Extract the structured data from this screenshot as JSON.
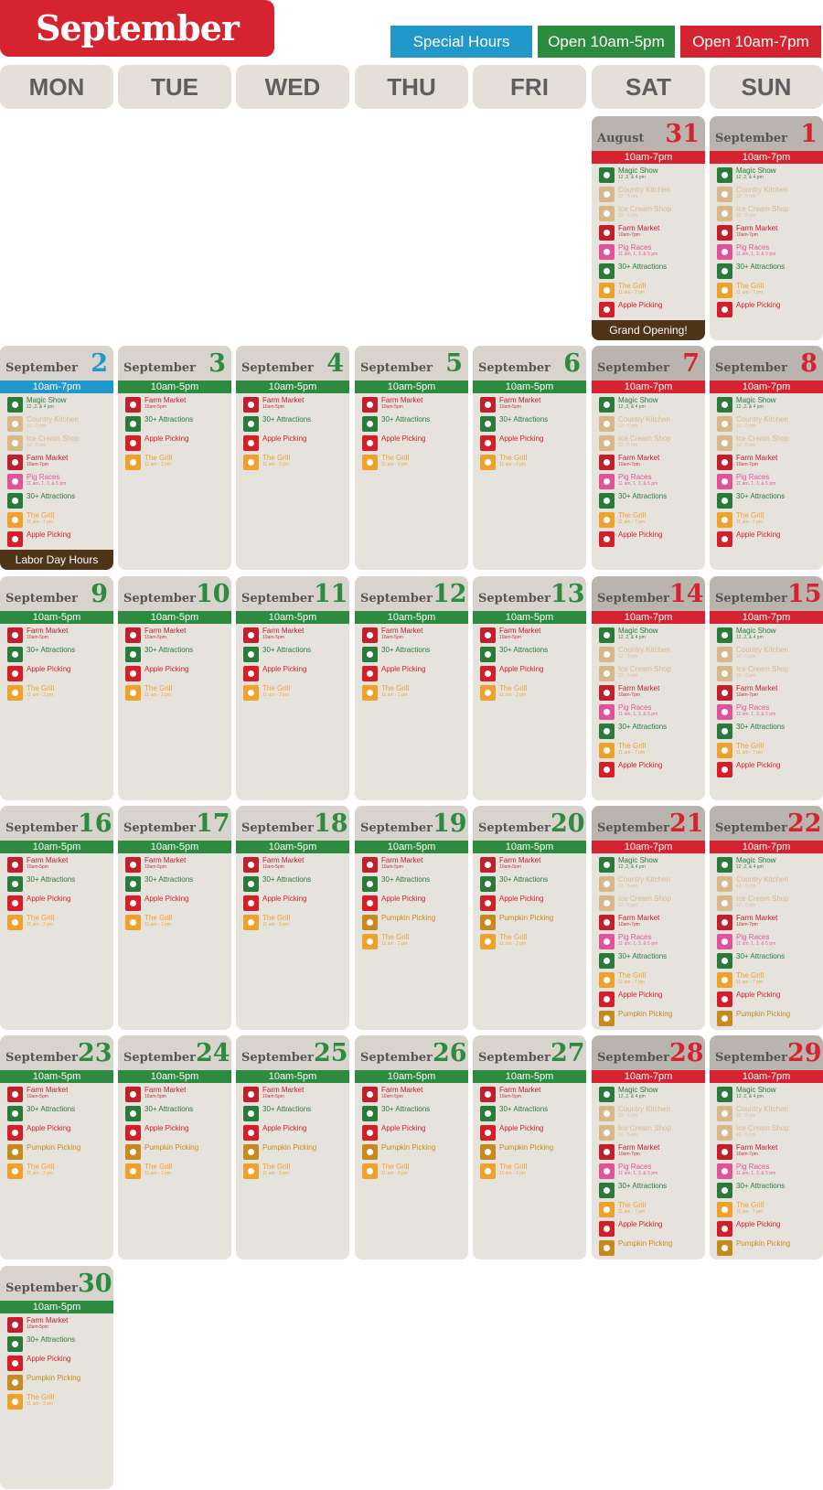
{
  "title": "September",
  "colors": {
    "special": "#2198c9",
    "open5": "#2c8b3e",
    "open7": "#d5232f",
    "footer": "#4f3418"
  },
  "legend": [
    {
      "label": "Special Hours",
      "type": "special"
    },
    {
      "label": "Open 10am-5pm",
      "type": "open5"
    },
    {
      "label": "Open 10am-7pm",
      "type": "open7"
    }
  ],
  "weekdays": [
    "MON",
    "TUE",
    "WED",
    "THU",
    "FRI",
    "SAT",
    "SUN"
  ],
  "events": {
    "magic": {
      "name": "Magic Show",
      "sub": "12 ,2, & 4 pm",
      "color": "#2a7a3a",
      "icon": "magic-show-icon"
    },
    "kitchen": {
      "name": "Country Kitchen",
      "sub": "12 - 5 pm",
      "color": "#d8b88b",
      "icon": "country-kitchen-icon"
    },
    "icecream": {
      "name": "Ice Cream Shop",
      "sub": "12 - 5 pm",
      "color": "#d8b88b",
      "icon": "ice-cream-icon"
    },
    "farm7": {
      "name": "Farm Market",
      "sub": "10am-7pm",
      "color": "#c11f2c",
      "icon": "farm-market-icon"
    },
    "farm5": {
      "name": "Farm Market",
      "sub": "10am-5pm",
      "color": "#c11f2c",
      "icon": "farm-market-icon"
    },
    "pig": {
      "name": "Pig Races",
      "sub": "11 am, 1, 3, & 5 pm",
      "color": "#e0539a",
      "icon": "pig-races-icon"
    },
    "attr": {
      "name": "30+ Attractions",
      "sub": "",
      "color": "#2a7a3a",
      "icon": "attractions-icon"
    },
    "grill7": {
      "name": "The Grill",
      "sub": "11 am - 7 pm",
      "color": "#f0a12b",
      "icon": "grill-icon"
    },
    "grill2": {
      "name": "The Grill",
      "sub": "11 am - 2 pm",
      "color": "#f0a12b",
      "icon": "grill-icon"
    },
    "apple": {
      "name": "Apple Picking",
      "sub": "",
      "color": "#d51e27",
      "icon": "apple-icon"
    },
    "pumpkin": {
      "name": "Pumpkin Picking",
      "sub": "",
      "color": "#c68a1e",
      "icon": "pumpkin-icon"
    }
  },
  "days": [
    {
      "month": "August",
      "num": "31",
      "hours": "10am-7pm",
      "type": "open7",
      "events": [
        "magic",
        "kitchen",
        "icecream",
        "farm7",
        "pig",
        "attr",
        "grill7",
        "apple"
      ],
      "footer": "Grand Opening!"
    },
    {
      "month": "September",
      "num": "1",
      "hours": "10am-7pm",
      "type": "open7",
      "events": [
        "magic",
        "kitchen",
        "icecream",
        "farm7",
        "pig",
        "attr",
        "grill7",
        "apple"
      ]
    },
    {
      "month": "September",
      "num": "2",
      "hours": "10am-7pm",
      "type": "special",
      "events": [
        "magic",
        "kitchen",
        "icecream",
        "farm7",
        "pig",
        "attr",
        "grill7",
        "apple"
      ],
      "footer": "Labor Day Hours"
    },
    {
      "month": "September",
      "num": "3",
      "hours": "10am-5pm",
      "type": "open5",
      "events": [
        "farm5",
        "attr",
        "apple",
        "grill2"
      ]
    },
    {
      "month": "September",
      "num": "4",
      "hours": "10am-5pm",
      "type": "open5",
      "events": [
        "farm5",
        "attr",
        "apple",
        "grill2"
      ]
    },
    {
      "month": "September",
      "num": "5",
      "hours": "10am-5pm",
      "type": "open5",
      "events": [
        "farm5",
        "attr",
        "apple",
        "grill2"
      ]
    },
    {
      "month": "September",
      "num": "6",
      "hours": "10am-5pm",
      "type": "open5",
      "events": [
        "farm5",
        "attr",
        "apple",
        "grill2"
      ]
    },
    {
      "month": "September",
      "num": "7",
      "hours": "10am-7pm",
      "type": "open7",
      "events": [
        "magic",
        "kitchen",
        "icecream",
        "farm7",
        "pig",
        "attr",
        "grill7",
        "apple"
      ]
    },
    {
      "month": "September",
      "num": "8",
      "hours": "10am-7pm",
      "type": "open7",
      "events": [
        "magic",
        "kitchen",
        "icecream",
        "farm7",
        "pig",
        "attr",
        "grill7",
        "apple"
      ]
    },
    {
      "month": "September",
      "num": "9",
      "hours": "10am-5pm",
      "type": "open5",
      "events": [
        "farm5",
        "attr",
        "apple",
        "grill2"
      ]
    },
    {
      "month": "September",
      "num": "10",
      "hours": "10am-5pm",
      "type": "open5",
      "events": [
        "farm5",
        "attr",
        "apple",
        "grill2"
      ]
    },
    {
      "month": "September",
      "num": "11",
      "hours": "10am-5pm",
      "type": "open5",
      "events": [
        "farm5",
        "attr",
        "apple",
        "grill2"
      ]
    },
    {
      "month": "September",
      "num": "12",
      "hours": "10am-5pm",
      "type": "open5",
      "events": [
        "farm5",
        "attr",
        "apple",
        "grill2"
      ]
    },
    {
      "month": "September",
      "num": "13",
      "hours": "10am-5pm",
      "type": "open5",
      "events": [
        "farm5",
        "attr",
        "apple",
        "grill2"
      ]
    },
    {
      "month": "September",
      "num": "14",
      "hours": "10am-7pm",
      "type": "open7",
      "events": [
        "magic",
        "kitchen",
        "icecream",
        "farm7",
        "pig",
        "attr",
        "grill7",
        "apple"
      ]
    },
    {
      "month": "September",
      "num": "15",
      "hours": "10am-7pm",
      "type": "open7",
      "events": [
        "magic",
        "kitchen",
        "icecream",
        "farm7",
        "pig",
        "attr",
        "grill7",
        "apple"
      ]
    },
    {
      "month": "September",
      "num": "16",
      "hours": "10am-5pm",
      "type": "open5",
      "events": [
        "farm5",
        "attr",
        "apple",
        "grill2"
      ]
    },
    {
      "month": "September",
      "num": "17",
      "hours": "10am-5pm",
      "type": "open5",
      "events": [
        "farm5",
        "attr",
        "apple",
        "grill2"
      ]
    },
    {
      "month": "September",
      "num": "18",
      "hours": "10am-5pm",
      "type": "open5",
      "events": [
        "farm5",
        "attr",
        "apple",
        "grill2"
      ]
    },
    {
      "month": "September",
      "num": "19",
      "hours": "10am-5pm",
      "type": "open5",
      "events": [
        "farm5",
        "attr",
        "apple",
        "pumpkin",
        "grill2"
      ]
    },
    {
      "month": "September",
      "num": "20",
      "hours": "10am-5pm",
      "type": "open5",
      "events": [
        "farm5",
        "attr",
        "apple",
        "pumpkin",
        "grill2"
      ]
    },
    {
      "month": "September",
      "num": "21",
      "hours": "10am-7pm",
      "type": "open7",
      "events": [
        "magic",
        "kitchen",
        "icecream",
        "farm7",
        "pig",
        "attr",
        "grill7",
        "apple",
        "pumpkin"
      ]
    },
    {
      "month": "September",
      "num": "22",
      "hours": "10am-7pm",
      "type": "open7",
      "events": [
        "magic",
        "kitchen",
        "icecream",
        "farm7",
        "pig",
        "attr",
        "grill7",
        "apple",
        "pumpkin"
      ]
    },
    {
      "month": "September",
      "num": "23",
      "hours": "10am-5pm",
      "type": "open5",
      "events": [
        "farm5",
        "attr",
        "apple",
        "pumpkin",
        "grill2"
      ]
    },
    {
      "month": "September",
      "num": "24",
      "hours": "10am-5pm",
      "type": "open5",
      "events": [
        "farm5",
        "attr",
        "apple",
        "pumpkin",
        "grill2"
      ]
    },
    {
      "month": "September",
      "num": "25",
      "hours": "10am-5pm",
      "type": "open5",
      "events": [
        "farm5",
        "attr",
        "apple",
        "pumpkin",
        "grill2"
      ]
    },
    {
      "month": "September",
      "num": "26",
      "hours": "10am-5pm",
      "type": "open5",
      "events": [
        "farm5",
        "attr",
        "apple",
        "pumpkin",
        "grill2"
      ]
    },
    {
      "month": "September",
      "num": "27",
      "hours": "10am-5pm",
      "type": "open5",
      "events": [
        "farm5",
        "attr",
        "apple",
        "pumpkin",
        "grill2"
      ]
    },
    {
      "month": "September",
      "num": "28",
      "hours": "10am-7pm",
      "type": "open7",
      "events": [
        "magic",
        "kitchen",
        "icecream",
        "farm7",
        "pig",
        "attr",
        "grill7",
        "apple",
        "pumpkin"
      ]
    },
    {
      "month": "September",
      "num": "29",
      "hours": "10am-7pm",
      "type": "open7",
      "events": [
        "magic",
        "kitchen",
        "icecream",
        "farm7",
        "pig",
        "attr",
        "grill7",
        "apple",
        "pumpkin"
      ]
    },
    {
      "month": "September",
      "num": "30",
      "hours": "10am-5pm",
      "type": "open5",
      "events": [
        "farm5",
        "attr",
        "apple",
        "pumpkin",
        "grill2"
      ]
    }
  ]
}
